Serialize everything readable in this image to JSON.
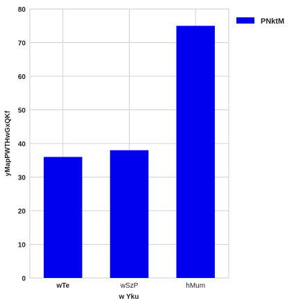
{
  "chart_data": {
    "type": "bar",
    "categories": [
      "wTe",
      "wSzP",
      "hMum"
    ],
    "category_bold": [
      true,
      false,
      false
    ],
    "series": [
      {
        "name": "PNktM",
        "values": [
          36,
          38,
          75
        ],
        "color": "#0000ee"
      }
    ],
    "xlabel": "w Yku",
    "ylabel": "yMapPWTHwGxQKf",
    "ylim": [
      0,
      80
    ],
    "yticks": [
      0,
      10,
      20,
      30,
      40,
      50,
      60,
      70,
      80
    ],
    "grid": true,
    "grid_color": "#d0d0d0",
    "legend_position": "top-right outside"
  }
}
